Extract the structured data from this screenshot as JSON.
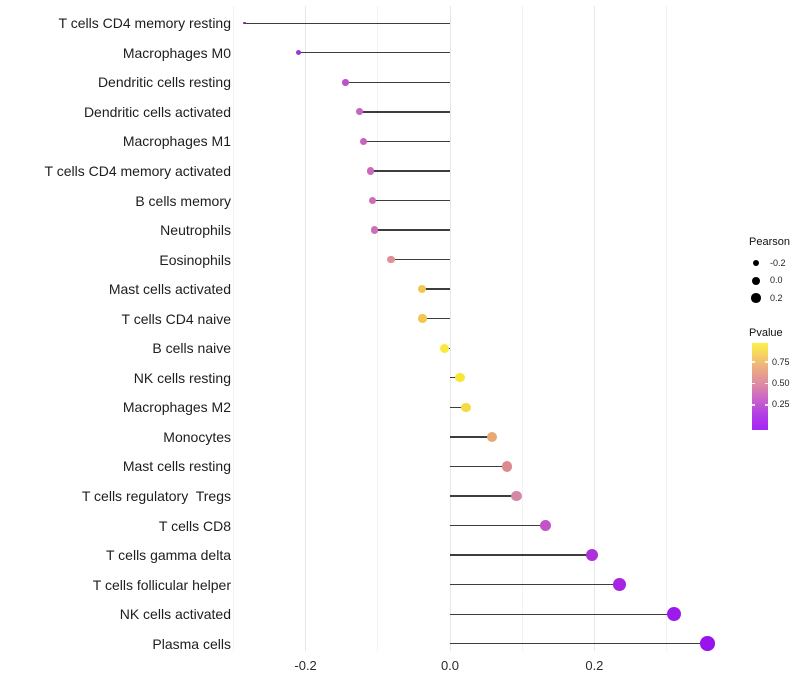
{
  "chart_data": {
    "type": "lollipop",
    "title": "",
    "xlabel": "",
    "ylabel": "",
    "xlim": [
      -0.317,
      0.388
    ],
    "baseline": 0,
    "grid": "vertical-only",
    "x_axis": {
      "ticks": [
        {
          "v": -0.2,
          "label": "-0.2"
        },
        {
          "v": 0.0,
          "label": "0.0"
        },
        {
          "v": 0.2,
          "label": "0.2"
        }
      ],
      "minor": [
        -0.3,
        -0.1,
        0.1,
        0.3
      ]
    },
    "points": [
      {
        "label": "T cells CD4 memory resting",
        "pearson": -0.285,
        "color": "#7B21BB"
      },
      {
        "label": "Macrophages M0",
        "pearson": -0.21,
        "color": "#9F36D2"
      },
      {
        "label": "Dendritic cells resting",
        "pearson": -0.145,
        "color": "#BB53C8"
      },
      {
        "label": "Dendritic cells activated",
        "pearson": -0.125,
        "color": "#C566C0"
      },
      {
        "label": "Macrophages M1",
        "pearson": -0.12,
        "color": "#C764BE"
      },
      {
        "label": "T cells CD4 memory activated",
        "pearson": -0.11,
        "color": "#CB69BA"
      },
      {
        "label": "B cells memory",
        "pearson": -0.107,
        "color": "#CD6DB7"
      },
      {
        "label": "Neutrophils",
        "pearson": -0.105,
        "color": "#CE70B5"
      },
      {
        "label": "Eosinophils",
        "pearson": -0.082,
        "color": "#DE8F97"
      },
      {
        "label": "Mast cells activated",
        "pearson": -0.039,
        "color": "#F2C750"
      },
      {
        "label": "T cells CD4 naive",
        "pearson": -0.038,
        "color": "#F2C64F"
      },
      {
        "label": "B cells naive",
        "pearson": -0.007,
        "color": "#F8E93B"
      },
      {
        "label": "NK cells resting",
        "pearson": 0.014,
        "color": "#F8E637"
      },
      {
        "label": "Macrophages M2",
        "pearson": 0.022,
        "color": "#F4DA44"
      },
      {
        "label": "Monocytes",
        "pearson": 0.058,
        "color": "#E9A873"
      },
      {
        "label": "Mast cells resting",
        "pearson": 0.079,
        "color": "#DC8B90"
      },
      {
        "label": "T cells regulatory  Tregs",
        "pearson": 0.092,
        "color": "#D687A8"
      },
      {
        "label": "T cells CD8",
        "pearson": 0.132,
        "color": "#C353C9"
      },
      {
        "label": "T cells gamma delta",
        "pearson": 0.197,
        "color": "#AE30D9"
      },
      {
        "label": "T cells follicular helper",
        "pearson": 0.235,
        "color": "#A724E2"
      },
      {
        "label": "NK cells activated",
        "pearson": 0.31,
        "color": "#9D1BEA"
      },
      {
        "label": "Plasma cells",
        "pearson": 0.357,
        "color": "#9A13EF"
      }
    ],
    "legend_size": {
      "title": "Pearson",
      "entries": [
        "-0.2",
        "0.0",
        "0.2"
      ]
    },
    "legend_color": {
      "title": "Pvalue",
      "entries": [
        "0.75",
        "0.50",
        "0.25"
      ],
      "gradient_top_to_bottom": [
        "#FBF04B",
        "#F4CA68",
        "#E8A38A",
        "#DA86A8",
        "#C75FCC",
        "#B23BE6",
        "#A426F7"
      ]
    },
    "stick_color": "#3d3d3d"
  }
}
